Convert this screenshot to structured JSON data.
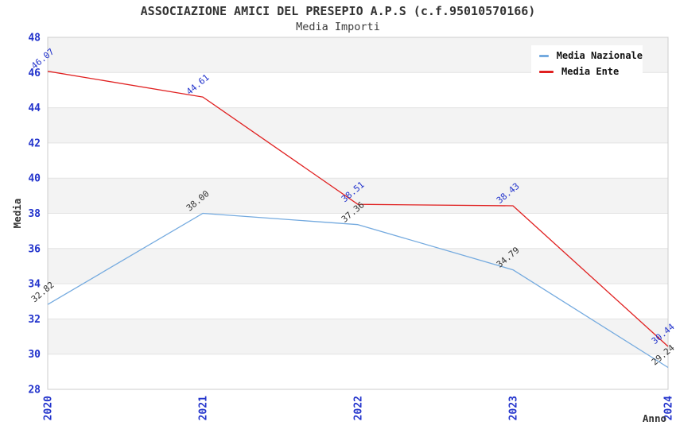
{
  "title": "ASSOCIAZIONE AMICI DEL PRESEPIO A.P.S (c.f.95010570166)",
  "subtitle": "Media Importi",
  "axes": {
    "x_title": "Anno",
    "y_title": "Media"
  },
  "colors": {
    "tick_label": "#2233cc",
    "band_fill": "#f3f3f3",
    "band_line": "#e3e3e3",
    "plot_border": "#cccccc",
    "title_text": "#333333",
    "axis_title_text": "#333333"
  },
  "chart_data": {
    "type": "line",
    "title": "Media Importi",
    "x": [
      "2020",
      "2021",
      "2022",
      "2023",
      "2024"
    ],
    "xlabel": "Anno",
    "ylabel": "Media",
    "ylim": [
      28,
      48
    ],
    "ytick_step": 2,
    "grid": "horizontal-bands-alternating",
    "legend_position": "top-right",
    "series": [
      {
        "name": "Media Nazionale",
        "color": "#74aadf",
        "label_color": "#333333",
        "values": [
          32.82,
          38.0,
          37.36,
          34.79,
          29.24
        ]
      },
      {
        "name": "Media Ente",
        "color": "#e02020",
        "label_color": "#2233cc",
        "values": [
          46.07,
          44.61,
          38.51,
          38.43,
          30.44
        ]
      }
    ]
  }
}
